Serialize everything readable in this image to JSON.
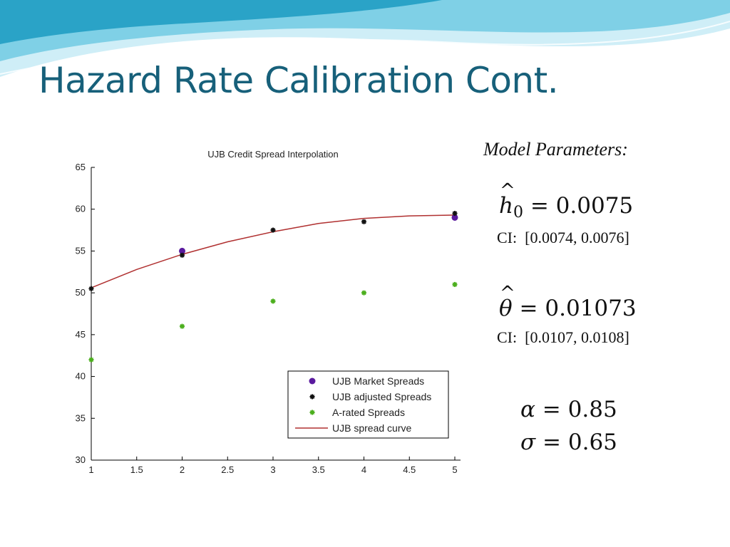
{
  "slide": {
    "title": "Hazard Rate Calibration Cont.",
    "colors": {
      "title": "#17607a",
      "header_wave_light": "#cfeef7",
      "header_wave_mid": "#7fd0e6",
      "header_wave_dark": "#2aa3c7"
    }
  },
  "params": {
    "heading": "Model Parameters:",
    "h0": {
      "symbol": "h",
      "hat": "^",
      "subscript": "0",
      "equals": "=",
      "value": "0.0075",
      "ci_label": "CI:",
      "ci_value": "[0.0074, 0.0076]"
    },
    "theta": {
      "symbol": "θ",
      "hat": "^",
      "equals": "=",
      "value": "0.01073",
      "ci_label": "CI:",
      "ci_value": "[0.0107, 0.0108]"
    },
    "alpha": {
      "symbol": "α",
      "equals": "=",
      "value": "0.85"
    },
    "sigma": {
      "symbol": "σ",
      "equals": "=",
      "value": "0.65"
    }
  },
  "chart_data": {
    "type": "scatter",
    "title": "UJB Credit Spread Interpolation",
    "xlabel": "",
    "ylabel": "",
    "xlim": [
      1,
      5
    ],
    "ylim": [
      30,
      65
    ],
    "xticks": [
      1,
      1.5,
      2,
      2.5,
      3,
      3.5,
      4,
      4.5,
      5
    ],
    "xtick_labels": [
      "1",
      "1.5",
      "2",
      "2.5",
      "3",
      "3.5",
      "4",
      "4.5",
      "5"
    ],
    "yticks": [
      30,
      35,
      40,
      45,
      50,
      55,
      60,
      65
    ],
    "ytick_labels": [
      "30",
      "35",
      "40",
      "45",
      "50",
      "55",
      "60",
      "65"
    ],
    "grid": false,
    "legend_placement": "bottom-right",
    "series": [
      {
        "name": "UJB Market Spreads",
        "kind": "points",
        "marker": "dot",
        "color": "#5a1a9e",
        "x": [
          2,
          5
        ],
        "y": [
          55,
          59
        ]
      },
      {
        "name": "UJB adjusted Spreads",
        "kind": "points",
        "marker": "star",
        "color": "#111111",
        "x": [
          1,
          2,
          3,
          4,
          5
        ],
        "y": [
          50.5,
          54.5,
          57.5,
          58.5,
          59.5
        ]
      },
      {
        "name": "A-rated Spreads",
        "kind": "points",
        "marker": "star",
        "color": "#4caf1e",
        "x": [
          1,
          2,
          3,
          4,
          5
        ],
        "y": [
          42,
          46,
          49,
          50,
          51
        ]
      },
      {
        "name": "UJB spread curve",
        "kind": "line",
        "color": "#b03030",
        "x": [
          1,
          1.5,
          2,
          2.5,
          3,
          3.5,
          4,
          4.5,
          5
        ],
        "y": [
          50.6,
          52.8,
          54.6,
          56.1,
          57.3,
          58.3,
          58.9,
          59.2,
          59.3
        ]
      }
    ]
  }
}
